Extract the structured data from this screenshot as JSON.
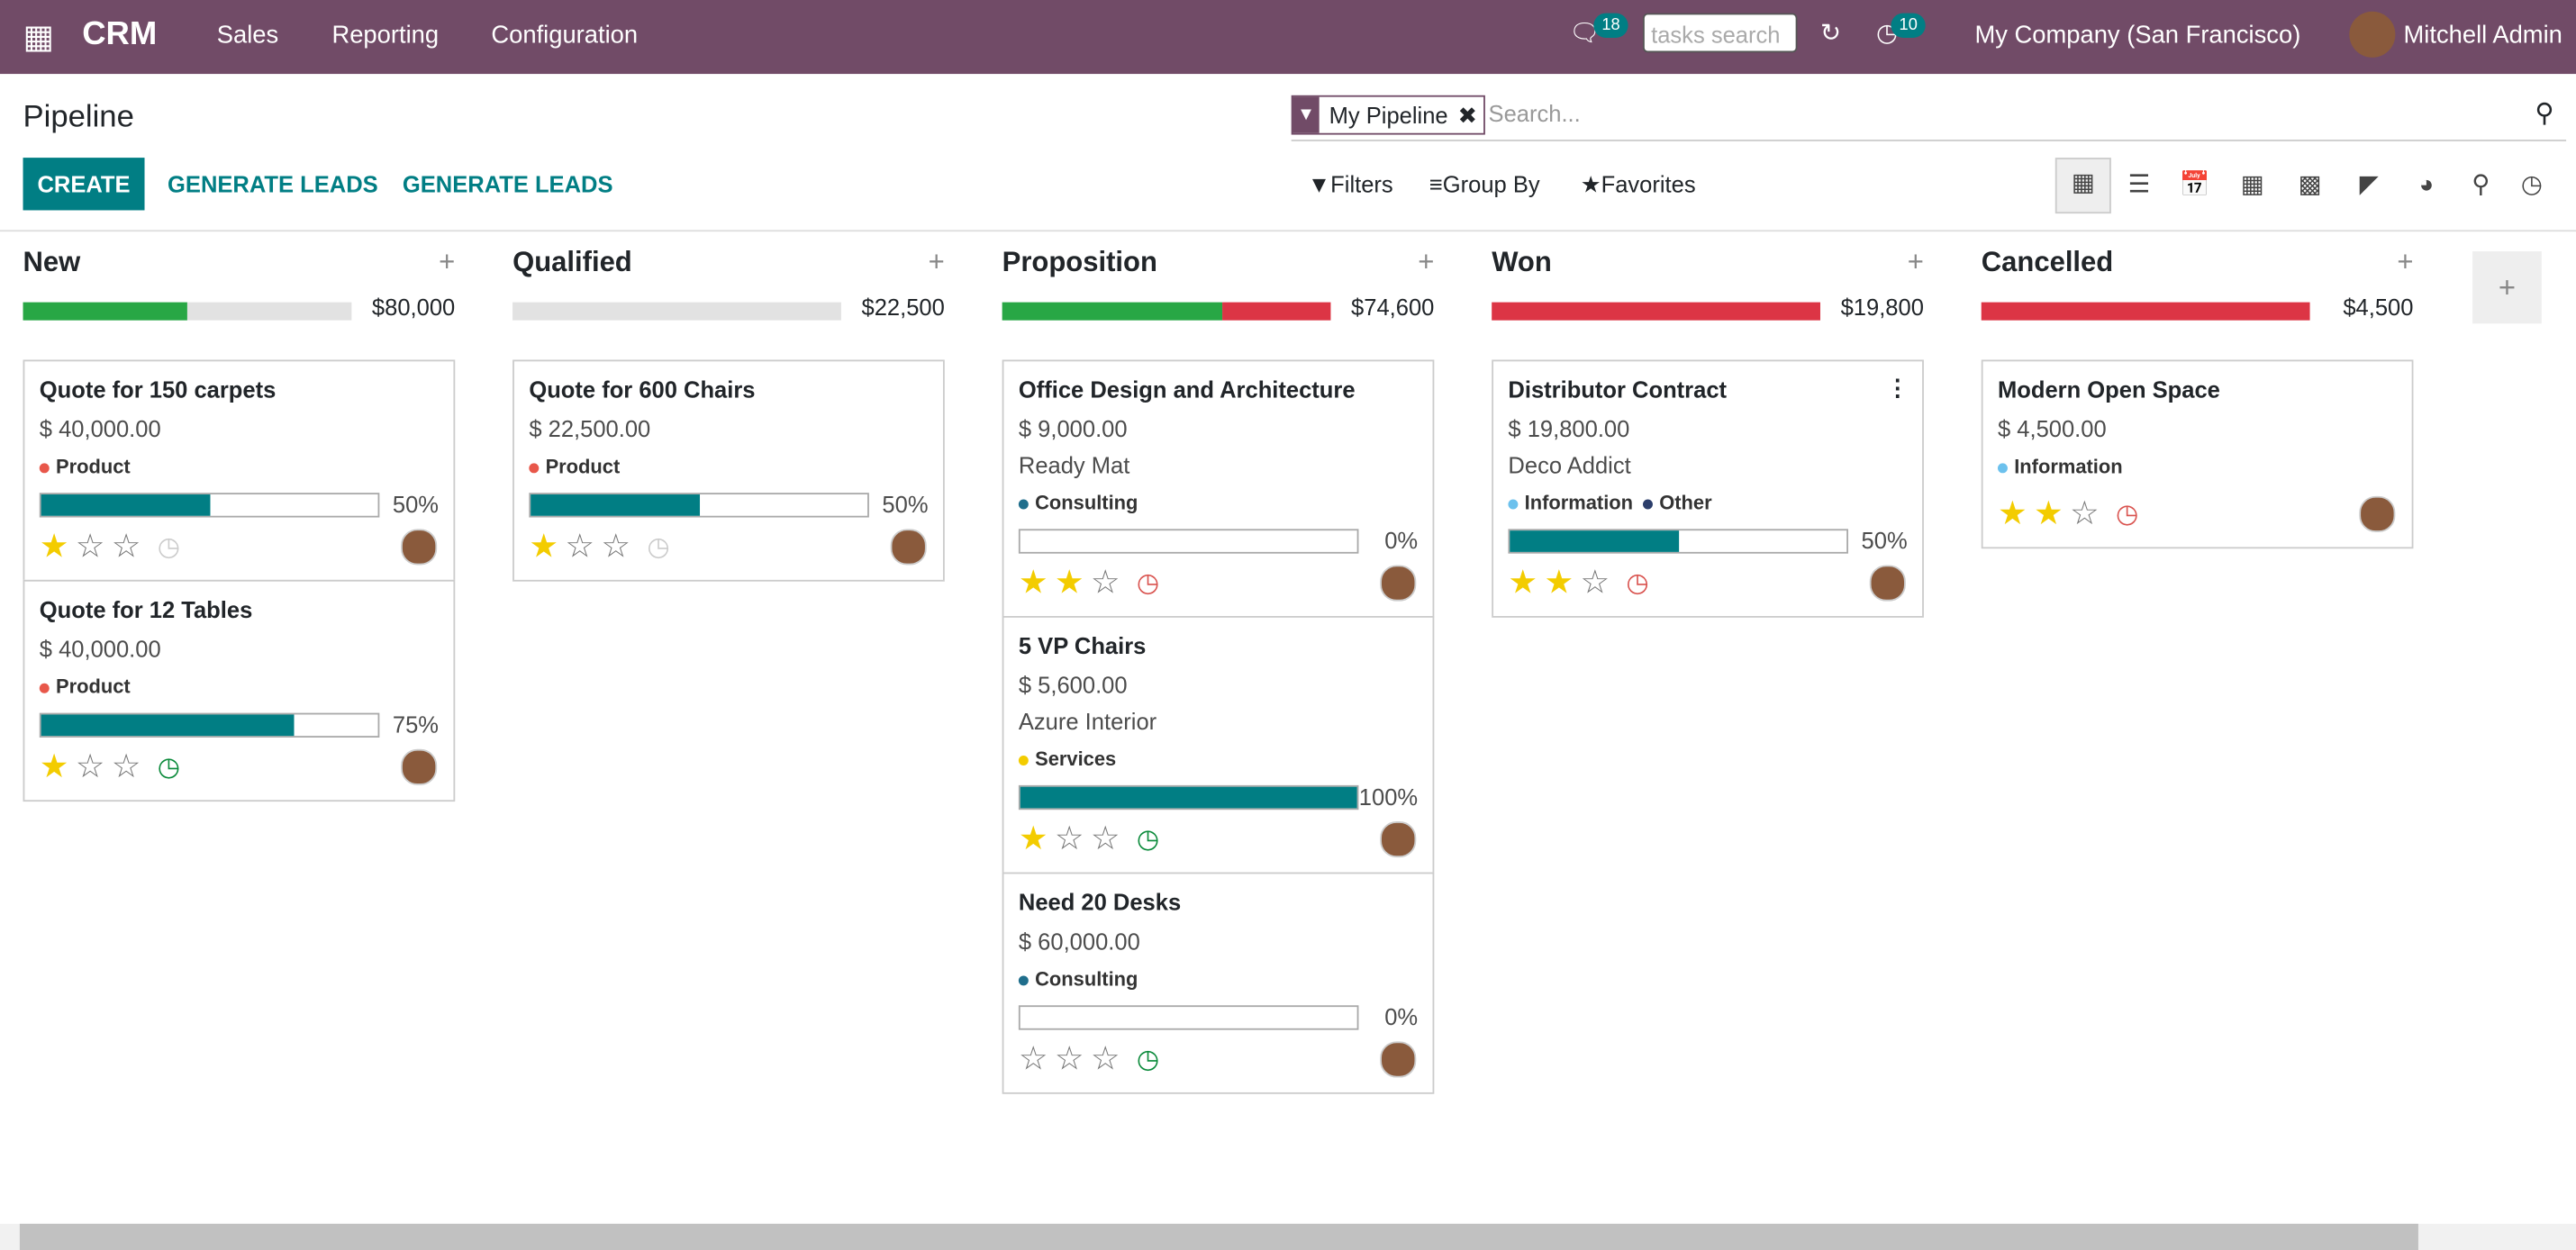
{
  "navbar": {
    "app": "CRM",
    "menu": [
      "Sales",
      "Reporting",
      "Configuration"
    ],
    "messages_badge": "18",
    "search_placeholder": "tasks search",
    "activities_badge": "10",
    "company": "My Company (San Francisco)",
    "user": "Mitchell Admin"
  },
  "control_panel": {
    "title": "Pipeline",
    "buttons": [
      "CREATE",
      "GENERATE LEADS",
      "GENERATE LEADS"
    ],
    "facet": "My Pipeline",
    "search_placeholder": "Search...",
    "filters": "Filters",
    "group_by": "Group By",
    "favorites": "Favorites"
  },
  "columns": [
    {
      "name": "New",
      "total": "$80,000",
      "cards": [
        {
          "title": "Quote for 150 carpets",
          "amount": "$ 40,000.00",
          "tags": [
            "Product"
          ],
          "probability": "50%"
        },
        {
          "title": "Quote for 12 Tables",
          "amount": "$ 40,000.00",
          "tags": [
            "Product"
          ],
          "probability": "75%"
        }
      ]
    },
    {
      "name": "Qualified",
      "total": "$22,500",
      "cards": [
        {
          "title": "Quote for 600 Chairs",
          "amount": "$ 22,500.00",
          "tags": [
            "Product"
          ],
          "probability": "50%"
        }
      ]
    },
    {
      "name": "Proposition",
      "total": "$74,600",
      "cards": [
        {
          "title": "Office Design and Architecture",
          "amount": "$ 9,000.00",
          "company": "Ready Mat",
          "tags": [
            "Consulting"
          ],
          "probability": "0%"
        },
        {
          "title": "5 VP Chairs",
          "amount": "$ 5,600.00",
          "company": "Azure Interior",
          "tags": [
            "Services"
          ],
          "probability": "100%"
        },
        {
          "title": "Need 20 Desks",
          "amount": "$ 60,000.00",
          "tags": [
            "Consulting"
          ],
          "probability": "0%"
        }
      ]
    },
    {
      "name": "Won",
      "total": "$19,800",
      "cards": [
        {
          "title": "Distributor Contract",
          "amount": "$ 19,800.00",
          "company": "Deco Addict",
          "tags": [
            "Information",
            "Other"
          ],
          "probability": "50%"
        }
      ]
    },
    {
      "name": "Cancelled",
      "total": "$4,500",
      "cards": [
        {
          "title": "Modern Open Space",
          "amount": "$ 4,500.00",
          "tags": [
            "Information"
          ]
        }
      ]
    }
  ]
}
